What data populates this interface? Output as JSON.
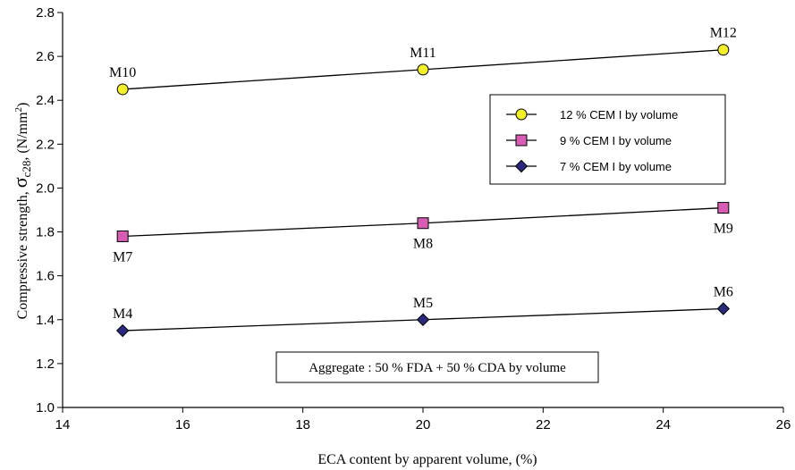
{
  "chart_data": {
    "type": "line",
    "xlabel": "ECA content by apparent volume, (%)",
    "ylabel_prefix": "Compressive strength, ",
    "ylabel_symbol": "σ",
    "ylabel_subscript": "c28",
    "ylabel_suffix": ", (N/mm",
    "ylabel_sup": "2",
    "ylabel_end": ")",
    "xlim": [
      14,
      26
    ],
    "ylim": [
      1.0,
      2.8
    ],
    "xticks": [
      "14",
      "16",
      "18",
      "20",
      "22",
      "24",
      "26"
    ],
    "yticks": [
      "1.0",
      "1.2",
      "1.4",
      "1.6",
      "1.8",
      "2.0",
      "2.2",
      "2.4",
      "2.6",
      "2.8"
    ],
    "grid": false,
    "legend_position": "right",
    "series": [
      {
        "name": "12 % CEM I by volume",
        "marker": "circle",
        "color": "#f2ef2a",
        "x": [
          15,
          20,
          25
        ],
        "y": [
          2.45,
          2.54,
          2.63
        ],
        "labels": [
          "M10",
          "M11",
          "M12"
        ],
        "label_pos": [
          "above",
          "above",
          "above"
        ]
      },
      {
        "name": "9 % CEM I by volume",
        "marker": "square",
        "color": "#d65cb4",
        "x": [
          15,
          20,
          25
        ],
        "y": [
          1.78,
          1.84,
          1.91
        ],
        "labels": [
          "M7",
          "M8",
          "M9"
        ],
        "label_pos": [
          "below",
          "below",
          "below"
        ]
      },
      {
        "name": "7 % CEM I by volume",
        "marker": "diamond",
        "color": "#2a2a7c",
        "x": [
          15,
          20,
          25
        ],
        "y": [
          1.35,
          1.4,
          1.45
        ],
        "labels": [
          "M4",
          "M5",
          "M6"
        ],
        "label_pos": [
          "above",
          "above",
          "above"
        ]
      }
    ],
    "annotation": "Aggregate : 50 % FDA + 50 % CDA by volume"
  }
}
